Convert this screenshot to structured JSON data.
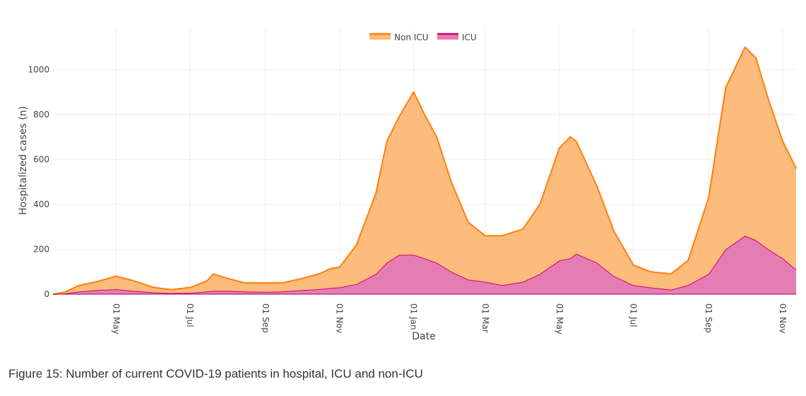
{
  "caption": "Figure 15: Number of current COVID-19 patients in hospital, ICU and non-ICU",
  "chart_data": {
    "type": "area",
    "stacked": true,
    "xlabel": "Date",
    "ylabel": "Hospitalized cases (n)",
    "ylim": [
      0,
      1190
    ],
    "yticks": [
      0,
      200,
      400,
      600,
      800,
      1000
    ],
    "xticks": [
      {
        "date": "2020-05-01",
        "label": "01 May"
      },
      {
        "date": "2020-07-01",
        "label": "01 Jul"
      },
      {
        "date": "2020-09-01",
        "label": "01 Sep"
      },
      {
        "date": "2020-11-01",
        "label": "01 Nov"
      },
      {
        "date": "2021-01-01",
        "label": "01 Jan"
      },
      {
        "date": "2021-03-01",
        "label": "01 Mar"
      },
      {
        "date": "2021-05-01",
        "label": "01 May"
      },
      {
        "date": "2021-07-01",
        "label": "01 Jul"
      },
      {
        "date": "2021-09-01",
        "label": "01 Sep"
      },
      {
        "date": "2021-11-01",
        "label": "01 Nov"
      }
    ],
    "xlim": [
      "2020-03-10",
      "2021-11-12"
    ],
    "grid": true,
    "legend_position": "top-center",
    "x": [
      "2020-03-10",
      "2020-03-20",
      "2020-04-01",
      "2020-04-15",
      "2020-05-01",
      "2020-05-15",
      "2020-06-01",
      "2020-06-15",
      "2020-07-01",
      "2020-07-15",
      "2020-07-20",
      "2020-08-01",
      "2020-08-15",
      "2020-09-01",
      "2020-09-15",
      "2020-10-01",
      "2020-10-15",
      "2020-10-25",
      "2020-11-01",
      "2020-11-15",
      "2020-12-01",
      "2020-12-10",
      "2020-12-20",
      "2021-01-01",
      "2021-01-10",
      "2021-01-20",
      "2021-02-01",
      "2021-02-15",
      "2021-03-01",
      "2021-03-15",
      "2021-04-01",
      "2021-04-15",
      "2021-05-01",
      "2021-05-10",
      "2021-05-15",
      "2021-06-01",
      "2021-06-15",
      "2021-07-01",
      "2021-07-15",
      "2021-08-01",
      "2021-08-15",
      "2021-09-01",
      "2021-09-15",
      "2021-10-01",
      "2021-10-10",
      "2021-10-20",
      "2021-11-01",
      "2021-11-12"
    ],
    "series": [
      {
        "name": "ICU",
        "color": "#d4006f",
        "fill": "#e57db5",
        "values": [
          0,
          3,
          12,
          18,
          22,
          15,
          8,
          5,
          6,
          12,
          15,
          15,
          12,
          10,
          12,
          18,
          22,
          28,
          30,
          45,
          90,
          140,
          175,
          175,
          160,
          140,
          100,
          65,
          55,
          40,
          55,
          90,
          150,
          160,
          180,
          140,
          80,
          40,
          30,
          20,
          40,
          90,
          200,
          260,
          240,
          200,
          160,
          110
        ]
      },
      {
        "name": "Non ICU",
        "color": "#ff7f0e",
        "fill": "#fdbb7c",
        "values": [
          0,
          7,
          28,
          37,
          58,
          45,
          22,
          15,
          24,
          48,
          75,
          55,
          38,
          40,
          38,
          52,
          68,
          87,
          90,
          175,
          360,
          540,
          615,
          725,
          640,
          560,
          400,
          255,
          205,
          220,
          235,
          310,
          500,
          540,
          500,
          340,
          200,
          90,
          70,
          70,
          110,
          340,
          720,
          840,
          810,
          670,
          520,
          450
        ]
      }
    ]
  }
}
